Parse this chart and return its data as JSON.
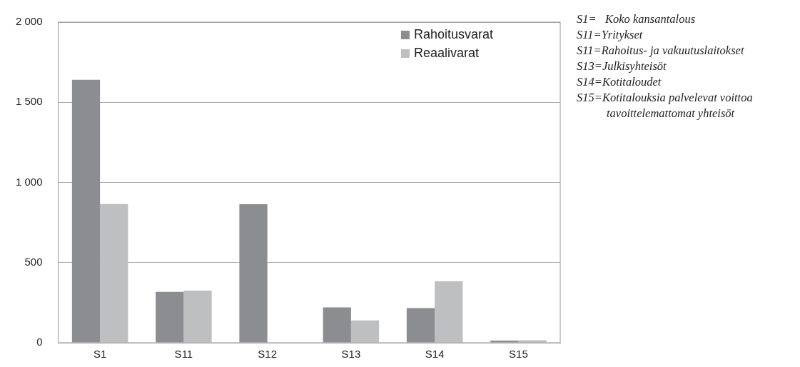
{
  "chart_data": {
    "type": "bar",
    "categories": [
      "S1",
      "S11",
      "S12",
      "S13",
      "S14",
      "S15"
    ],
    "series": [
      {
        "name": "Rahoitusvarat",
        "color": "#8c8d91",
        "values": [
          1640,
          317,
          864,
          220,
          216,
          13
        ]
      },
      {
        "name": "Reaalivarat",
        "color": "#bebfc1",
        "values": [
          865,
          325,
          0,
          139,
          383,
          16
        ]
      }
    ],
    "ylim": [
      0,
      2000
    ],
    "yticks": [
      0,
      500,
      {
        "value": 1000,
        "label": "1 000"
      },
      {
        "value": 1500,
        "label": "1 500"
      },
      {
        "value": 2000,
        "label": "2 000"
      }
    ],
    "grid": "y",
    "legend": "top right",
    "annotations": [
      "S1=  Koko kansantalous",
      "S11=Yritykset",
      "S11=Rahoitus- ja vakuutuslaitokset",
      "S13=Julkisyhteisöt",
      "S14=Kotitaloudet",
      "S15=Kotitalouksia palvelevat voittoa tavoittelemattomat yhteisöt"
    ]
  }
}
